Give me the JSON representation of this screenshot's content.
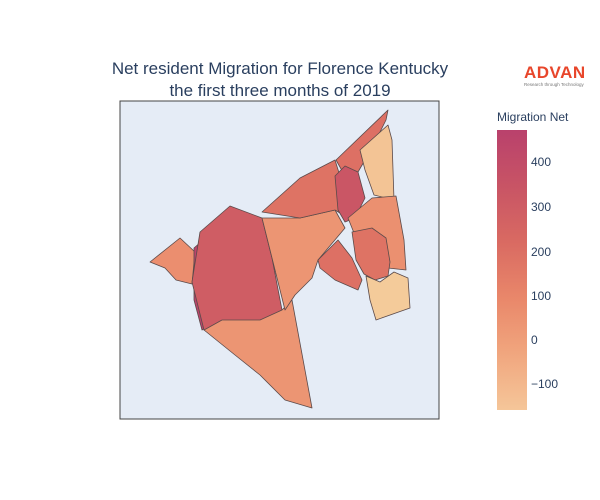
{
  "title_lines": [
    "Net resident Migration for Florence Kentucky",
    "the first three months of 2019"
  ],
  "logo": {
    "word": "ADVAN",
    "tagline": "Research through Technology",
    "color": "#e8462b"
  },
  "chart_data": {
    "type": "choropleth",
    "title": "Net resident Migration for Florence Kentucky the first three months of 2019",
    "colorbar": {
      "title": "Migration Net",
      "ticks": [
        "400",
        "300",
        "200",
        "100",
        "0",
        "−100"
      ],
      "range": [
        -150,
        480
      ],
      "colorscale": [
        "#f5d3a0",
        "#f0a37c",
        "#e9876a",
        "#d96a62",
        "#c85465",
        "#b9416c"
      ]
    },
    "regions": [
      {
        "id": "west-outlier",
        "value": 70
      },
      {
        "id": "west-central-core",
        "value": 460
      },
      {
        "id": "west-central-surround",
        "value": 300
      },
      {
        "id": "south-area",
        "value": 40
      },
      {
        "id": "central-large",
        "value": 40
      },
      {
        "id": "north-center",
        "value": 190
      },
      {
        "id": "north-east-top",
        "value": 200
      },
      {
        "id": "north-east-inner",
        "value": 340
      },
      {
        "id": "east-pale-top",
        "value": -110
      },
      {
        "id": "east-small-left",
        "value": 200
      },
      {
        "id": "east-middle",
        "value": 60
      },
      {
        "id": "east-inner",
        "value": 190
      },
      {
        "id": "east-bottom",
        "value": -130
      }
    ]
  }
}
